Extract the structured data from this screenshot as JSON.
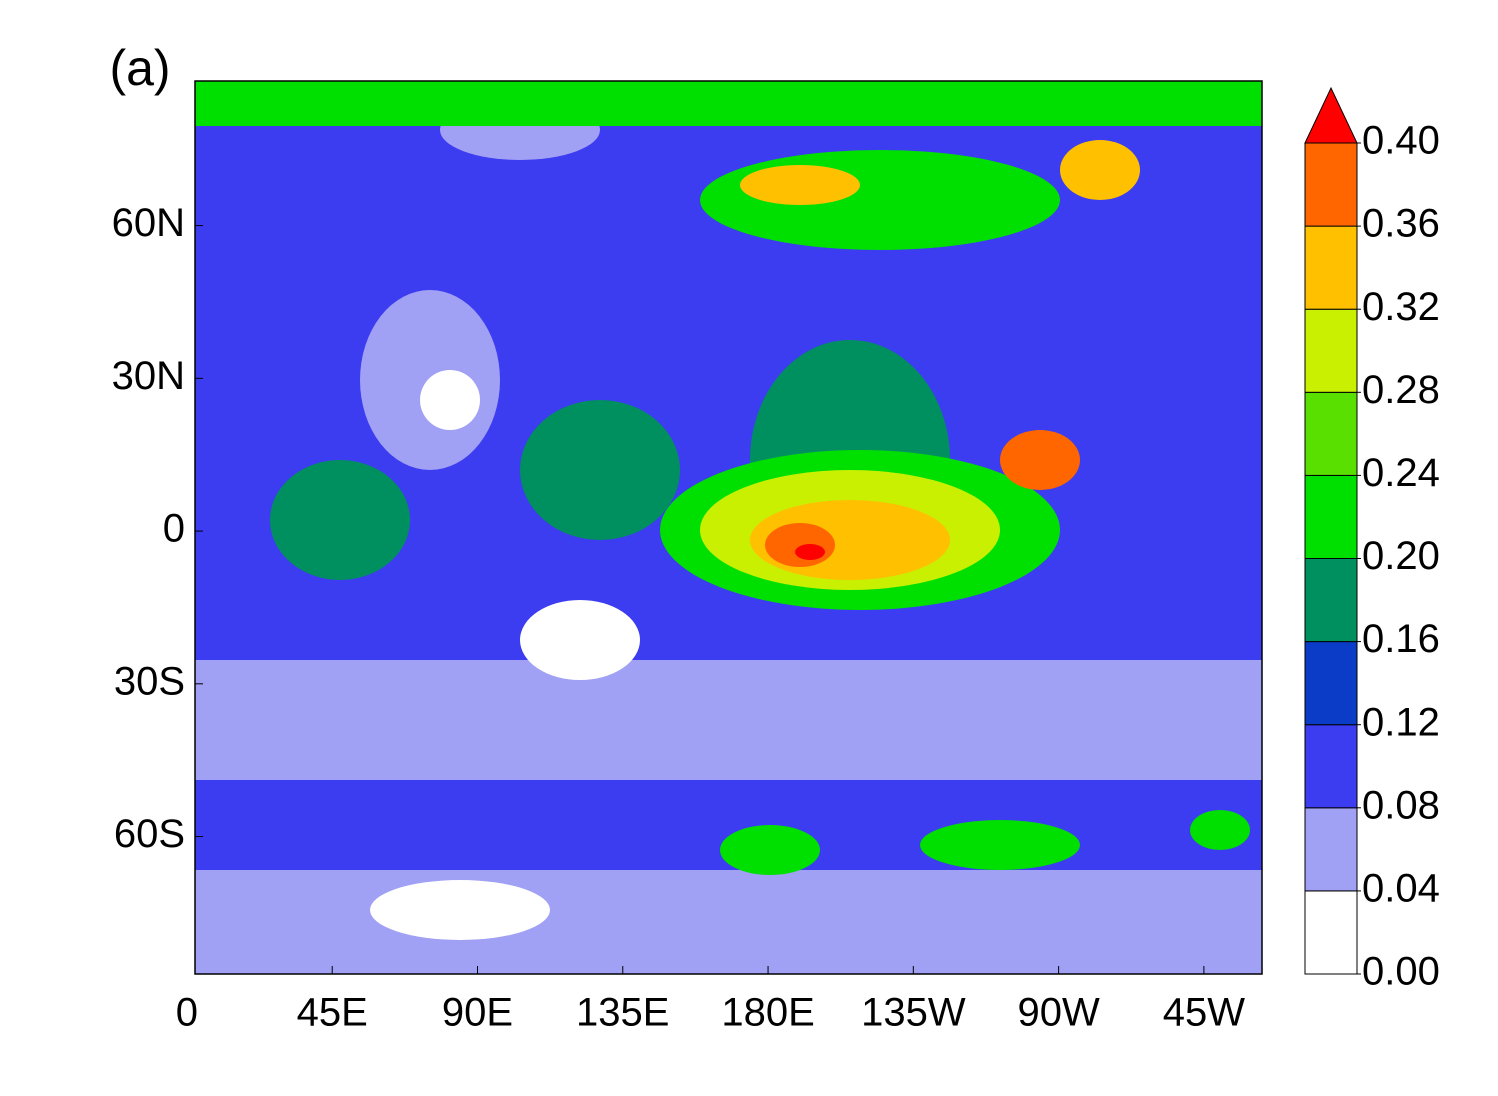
{
  "chart_data": {
    "type": "contour",
    "title": "(a)",
    "xlim": [
      2.5,
      333
    ],
    "xticks": [
      0,
      {
        "value": 45,
        "label": "45E"
      },
      {
        "value": 90,
        "label": "90E"
      },
      {
        "value": 135,
        "label": "135E"
      },
      {
        "value": 180,
        "label": "180E"
      },
      {
        "value": 225,
        "label": "135W"
      },
      {
        "value": 270,
        "label": "90W"
      },
      {
        "value": 315,
        "label": "45W"
      }
    ],
    "ylim": [
      -87,
      88.4
    ],
    "yticks": [
      {
        "value": -60,
        "label": "60S"
      },
      {
        "value": -30,
        "label": "30S"
      },
      0,
      {
        "value": 30,
        "label": "30N"
      },
      {
        "value": 60,
        "label": "60N"
      }
    ],
    "colorbar": {
      "ticks": [
        {
          "value": 0,
          "label": "0.00"
        },
        {
          "value": 0.04,
          "label": "0.04"
        },
        {
          "value": 0.08,
          "label": "0.08"
        },
        {
          "value": 0.12,
          "label": "0.12"
        },
        {
          "value": 0.16,
          "label": "0.16"
        },
        {
          "value": 0.2,
          "label": "0.20"
        },
        {
          "value": 0.24,
          "label": "0.24"
        },
        {
          "value": 0.28,
          "label": "0.28"
        },
        {
          "value": 0.32,
          "label": "0.32"
        },
        {
          "value": 0.36,
          "label": "0.36"
        },
        {
          "value": 0.4,
          "label": "0.40"
        }
      ],
      "colors": [
        "#ffffff",
        "#a0a0f5",
        "#3c3cf0",
        "#0a3cc8",
        "#009060",
        "#00e000",
        "#5ae000",
        "#c8f000",
        "#ffc000",
        "#ff6600"
      ],
      "extend_max": true,
      "over_color": "#ff0000"
    }
  }
}
